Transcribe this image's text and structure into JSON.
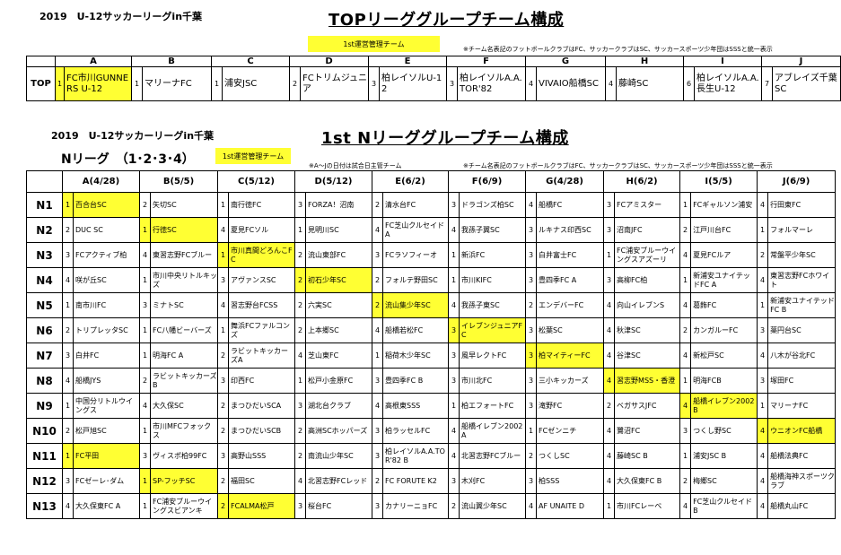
{
  "header1": {
    "league": "2019　U-12サッカーリーグin千葉",
    "title": "TOPリーググループチーム構成",
    "mgmt_label": "1st運営管理チーム",
    "note": "※チーム名表記のフットボールクラブはFC、サッカークラブはSC、サッカースポーツ少年団はSSSと統一表示"
  },
  "top_table": {
    "columns": [
      "A",
      "B",
      "C",
      "D",
      "E",
      "F",
      "G",
      "H",
      "I",
      "J"
    ],
    "row_label": "TOP",
    "cells": [
      {
        "num": "1",
        "name": "FC市川GUNNERS U-12",
        "yellow": true
      },
      {
        "num": "1",
        "name": "マリーナFC",
        "yellow": false
      },
      {
        "num": "1",
        "name": "浦安JSC",
        "yellow": false
      },
      {
        "num": "2",
        "name": "FCトリムジュニア",
        "yellow": false
      },
      {
        "num": "3",
        "name": "柏レイソルU-12",
        "yellow": false
      },
      {
        "num": "3",
        "name": "柏レイソルA.A.TOR'82",
        "yellow": false
      },
      {
        "num": "4",
        "name": "VIVAIO船橋SC",
        "yellow": false
      },
      {
        "num": "4",
        "name": "藤崎SC",
        "yellow": false
      },
      {
        "num": "6",
        "name": "柏レイソルA.A.長生U-12",
        "yellow": false
      },
      {
        "num": "7",
        "name": "アブレイズ千葉SC",
        "yellow": false
      }
    ]
  },
  "header2": {
    "league": "2019　U-12サッカーリーグin千葉",
    "title": "1st Nリーググループチーム構成",
    "subtitle": "Nリーグ　（1･2･3･4）",
    "mgmt_label": "1st運営管理チーム",
    "note_dates": "※A～Jの日付は試合日主管チーム",
    "note": "※チーム名表記のフットボールクラブはFC、サッカークラブはSC、サッカースポーツ少年団はSSSと統一表示"
  },
  "n_table": {
    "columns": [
      "A(4/28)",
      "B(5/5)",
      "C(5/12)",
      "D(5/12)",
      "E(6/2)",
      "F(6/9)",
      "G(4/28)",
      "H(6/2)",
      "I(5/5)",
      "J(6/9)"
    ],
    "rows": [
      {
        "label": "N1",
        "cells": [
          {
            "num": "1",
            "name": "百合台SC",
            "yellow": true
          },
          {
            "num": "2",
            "name": "矢切SC",
            "yellow": false
          },
          {
            "num": "1",
            "name": "南行徳FC",
            "yellow": false
          },
          {
            "num": "3",
            "name": "FORZA！沼南",
            "yellow": false
          },
          {
            "num": "2",
            "name": "清水台FC",
            "yellow": false
          },
          {
            "num": "3",
            "name": "ドラゴンズ柏SC",
            "yellow": false
          },
          {
            "num": "4",
            "name": "船橋FC",
            "yellow": false
          },
          {
            "num": "3",
            "name": "FCアミスター",
            "yellow": false
          },
          {
            "num": "1",
            "name": "FCギャルソン浦安",
            "yellow": false
          },
          {
            "num": "4",
            "name": "行田東FC",
            "yellow": false
          }
        ]
      },
      {
        "label": "N2",
        "cells": [
          {
            "num": "2",
            "name": "DUC SC",
            "yellow": false
          },
          {
            "num": "1",
            "name": "行徳SC",
            "yellow": true
          },
          {
            "num": "4",
            "name": "夏見FCソル",
            "yellow": false
          },
          {
            "num": "1",
            "name": "見明川SC",
            "yellow": false
          },
          {
            "num": "4",
            "name": "FC芝山クルセイドA",
            "yellow": false
          },
          {
            "num": "4",
            "name": "我孫子翼SC",
            "yellow": false
          },
          {
            "num": "3",
            "name": "ルキナス印西SC",
            "yellow": false
          },
          {
            "num": "3",
            "name": "沼南JFC",
            "yellow": false
          },
          {
            "num": "2",
            "name": "江戸川台FC",
            "yellow": false
          },
          {
            "num": "1",
            "name": "フォルマーレ",
            "yellow": false
          }
        ]
      },
      {
        "label": "N3",
        "cells": [
          {
            "num": "3",
            "name": "FCアクティブ柏",
            "yellow": false
          },
          {
            "num": "4",
            "name": "東習志野FCブルー",
            "yellow": false
          },
          {
            "num": "1",
            "name": "市川真間どろんこFC",
            "yellow": true
          },
          {
            "num": "2",
            "name": "流山東部FC",
            "yellow": false
          },
          {
            "num": "3",
            "name": "FCラソフィーオ",
            "yellow": false
          },
          {
            "num": "1",
            "name": "新浜FC",
            "yellow": false
          },
          {
            "num": "3",
            "name": "白井富士FC",
            "yellow": false
          },
          {
            "num": "1",
            "name": "FC浦安ブルーウイングスアズーリ",
            "yellow": false
          },
          {
            "num": "4",
            "name": "夏見FCルア",
            "yellow": false
          },
          {
            "num": "2",
            "name": "常盤平少年SC",
            "yellow": false
          }
        ]
      },
      {
        "label": "N4",
        "cells": [
          {
            "num": "4",
            "name": "咲が丘SC",
            "yellow": false
          },
          {
            "num": "1",
            "name": "市川中央リトルキッズ",
            "yellow": false
          },
          {
            "num": "3",
            "name": "アヴァンスSC",
            "yellow": false
          },
          {
            "num": "2",
            "name": "初石少年SC",
            "yellow": true
          },
          {
            "num": "2",
            "name": "フォルテ野田SC",
            "yellow": false
          },
          {
            "num": "1",
            "name": "市川KIFC",
            "yellow": false
          },
          {
            "num": "3",
            "name": "豊四季FC A",
            "yellow": false
          },
          {
            "num": "3",
            "name": "高柳FC柏",
            "yellow": false
          },
          {
            "num": "1",
            "name": "新浦安ユナイテッドFC A",
            "yellow": false
          },
          {
            "num": "4",
            "name": "東習志野FCホワイト",
            "yellow": false
          }
        ]
      },
      {
        "label": "N5",
        "cells": [
          {
            "num": "1",
            "name": "南市川FC",
            "yellow": false
          },
          {
            "num": "3",
            "name": "ミナトSC",
            "yellow": false
          },
          {
            "num": "4",
            "name": "習志野台FCSS",
            "yellow": false
          },
          {
            "num": "2",
            "name": "六実SC",
            "yellow": false
          },
          {
            "num": "2",
            "name": "流山集少年SC",
            "yellow": true
          },
          {
            "num": "4",
            "name": "我孫子東SC",
            "yellow": false
          },
          {
            "num": "2",
            "name": "エンデバーFC",
            "yellow": false
          },
          {
            "num": "4",
            "name": "向山イレブンS",
            "yellow": false
          },
          {
            "num": "4",
            "name": "葛飾FC",
            "yellow": false
          },
          {
            "num": "1",
            "name": "新浦安ユナイテッドFC B",
            "yellow": false
          }
        ]
      },
      {
        "label": "N6",
        "cells": [
          {
            "num": "2",
            "name": "トリプレッタSC",
            "yellow": false
          },
          {
            "num": "1",
            "name": "FC八幡ビーバーズ",
            "yellow": false
          },
          {
            "num": "1",
            "name": "舞浜FCファルコンズ",
            "yellow": false
          },
          {
            "num": "2",
            "name": "上本郷SC",
            "yellow": false
          },
          {
            "num": "4",
            "name": "船橋若松FC",
            "yellow": false
          },
          {
            "num": "3",
            "name": "イレブンジュニアFC",
            "yellow": true
          },
          {
            "num": "3",
            "name": "松葉SC",
            "yellow": false
          },
          {
            "num": "4",
            "name": "秋津SC",
            "yellow": false
          },
          {
            "num": "2",
            "name": "カンガルーFC",
            "yellow": false
          },
          {
            "num": "3",
            "name": "薬円台SC",
            "yellow": false
          }
        ]
      },
      {
        "label": "N7",
        "cells": [
          {
            "num": "3",
            "name": "白井FC",
            "yellow": false
          },
          {
            "num": "1",
            "name": "明海FC A",
            "yellow": false
          },
          {
            "num": "2",
            "name": "ラビットキッカーズA",
            "yellow": false
          },
          {
            "num": "4",
            "name": "芝山東FC",
            "yellow": false
          },
          {
            "num": "1",
            "name": "稲荷木少年SC",
            "yellow": false
          },
          {
            "num": "3",
            "name": "風早レクトFC",
            "yellow": false
          },
          {
            "num": "3",
            "name": "柏マイティーFC",
            "yellow": true
          },
          {
            "num": "4",
            "name": "谷津SC",
            "yellow": false
          },
          {
            "num": "4",
            "name": "新松戸SC",
            "yellow": false
          },
          {
            "num": "4",
            "name": "八木が谷北FC",
            "yellow": false
          }
        ]
      },
      {
        "label": "N8",
        "cells": [
          {
            "num": "4",
            "name": "船橋JYS",
            "yellow": false
          },
          {
            "num": "2",
            "name": "ラビットキッカーズB",
            "yellow": false
          },
          {
            "num": "3",
            "name": "印西FC",
            "yellow": false
          },
          {
            "num": "1",
            "name": "松戸小金原FC",
            "yellow": false
          },
          {
            "num": "3",
            "name": "豊四季FC B",
            "yellow": false
          },
          {
            "num": "3",
            "name": "市川北FC",
            "yellow": false
          },
          {
            "num": "3",
            "name": "三小キッカーズ",
            "yellow": false
          },
          {
            "num": "4",
            "name": "習志野MSS・香澄",
            "yellow": true
          },
          {
            "num": "1",
            "name": "明海FCB",
            "yellow": false
          },
          {
            "num": "3",
            "name": "塚田FC",
            "yellow": false
          }
        ]
      },
      {
        "label": "N9",
        "cells": [
          {
            "num": "1",
            "name": "中国分リトルウイングス",
            "yellow": false
          },
          {
            "num": "4",
            "name": "大久保SC",
            "yellow": false
          },
          {
            "num": "2",
            "name": "まつひだいSCA",
            "yellow": false
          },
          {
            "num": "3",
            "name": "湖北台クラブ",
            "yellow": false
          },
          {
            "num": "4",
            "name": "高根東SSS",
            "yellow": false
          },
          {
            "num": "1",
            "name": "柏エフォートFC",
            "yellow": false
          },
          {
            "num": "3",
            "name": "滝野FC",
            "yellow": false
          },
          {
            "num": "2",
            "name": "ベガサスJFC",
            "yellow": false
          },
          {
            "num": "4",
            "name": "船橋イレブン2002 B",
            "yellow": true
          },
          {
            "num": "1",
            "name": "マリーナFC",
            "yellow": false
          }
        ]
      },
      {
        "label": "N10",
        "cells": [
          {
            "num": "2",
            "name": "松戸旭SC",
            "yellow": false
          },
          {
            "num": "1",
            "name": "市川MFCフォックス",
            "yellow": false
          },
          {
            "num": "2",
            "name": "まつひだいSCB",
            "yellow": false
          },
          {
            "num": "2",
            "name": "高洲SCホッパーズ",
            "yellow": false
          },
          {
            "num": "3",
            "name": "柏ラッセルFC",
            "yellow": false
          },
          {
            "num": "4",
            "name": "船橋イレブン2002 A",
            "yellow": false
          },
          {
            "num": "1",
            "name": "FCゼンニチ",
            "yellow": false
          },
          {
            "num": "4",
            "name": "鷺沼FC",
            "yellow": false
          },
          {
            "num": "3",
            "name": "つくし野SC",
            "yellow": false
          },
          {
            "num": "4",
            "name": "ウニオンFC船橋",
            "yellow": true
          }
        ]
      },
      {
        "label": "N11",
        "cells": [
          {
            "num": "1",
            "name": "FC平田",
            "yellow": true
          },
          {
            "num": "3",
            "name": "ヴィスポ柏99FC",
            "yellow": false
          },
          {
            "num": "3",
            "name": "高野山SSS",
            "yellow": false
          },
          {
            "num": "2",
            "name": "南流山少年SC",
            "yellow": false
          },
          {
            "num": "3",
            "name": "柏レイソルA.A.TOR'82 B",
            "yellow": false
          },
          {
            "num": "4",
            "name": "北習志野FCブルー",
            "yellow": false
          },
          {
            "num": "2",
            "name": "つくしSC",
            "yellow": false
          },
          {
            "num": "4",
            "name": "藤崎SC B",
            "yellow": false
          },
          {
            "num": "1",
            "name": "浦安JSC B",
            "yellow": false
          },
          {
            "num": "4",
            "name": "船橋法典FC",
            "yellow": false
          }
        ]
      },
      {
        "label": "N12",
        "cells": [
          {
            "num": "3",
            "name": "FCゼーレ･ダム",
            "yellow": false
          },
          {
            "num": "1",
            "name": "SP-フッチSC",
            "yellow": true
          },
          {
            "num": "2",
            "name": "福田SC",
            "yellow": false
          },
          {
            "num": "4",
            "name": "北習志野FCレッド",
            "yellow": false
          },
          {
            "num": "2",
            "name": "FC FORUTE K2",
            "yellow": false
          },
          {
            "num": "3",
            "name": "木刈FC",
            "yellow": false
          },
          {
            "num": "3",
            "name": "柏SSS",
            "yellow": false
          },
          {
            "num": "4",
            "name": "大久保東FC B",
            "yellow": false
          },
          {
            "num": "2",
            "name": "梅郷SC",
            "yellow": false
          },
          {
            "num": "4",
            "name": "船橋海神スポーツクラブ",
            "yellow": false
          }
        ]
      },
      {
        "label": "N13",
        "cells": [
          {
            "num": "4",
            "name": "大久保東FC A",
            "yellow": false
          },
          {
            "num": "1",
            "name": "FC浦安ブルーウイングスビアンキ",
            "yellow": false
          },
          {
            "num": "2",
            "name": "FCALMA松戸",
            "yellow": true
          },
          {
            "num": "3",
            "name": "桜台FC",
            "yellow": false
          },
          {
            "num": "3",
            "name": "カナリーニョFC",
            "yellow": false
          },
          {
            "num": "2",
            "name": "流山翼少年SC",
            "yellow": false
          },
          {
            "num": "4",
            "name": "AF UNAITE D",
            "yellow": false
          },
          {
            "num": "1",
            "name": "市川FCレーベ",
            "yellow": false
          },
          {
            "num": "4",
            "name": "FC芝山クルセイド B",
            "yellow": false
          },
          {
            "num": "4",
            "name": "船橋丸山FC",
            "yellow": false
          }
        ]
      }
    ]
  }
}
